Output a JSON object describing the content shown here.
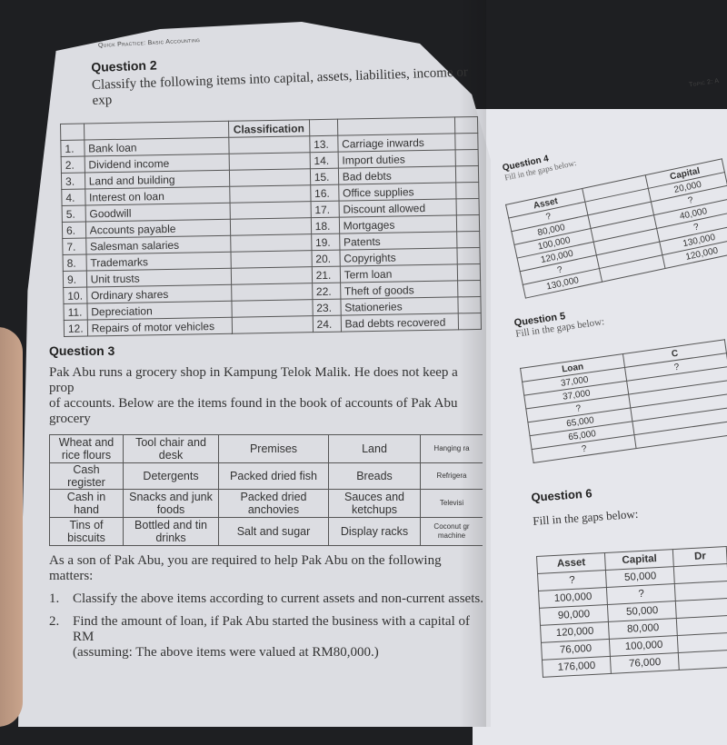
{
  "left_page": {
    "running_head": "Quick Practice: Basic Accounting",
    "q2": {
      "title": "Question 2",
      "instruction": "Classify the following items into capital, assets, liabilities, income or exp",
      "header": "Classification",
      "items_left": [
        {
          "n": "1.",
          "label": "Bank loan"
        },
        {
          "n": "2.",
          "label": "Dividend income"
        },
        {
          "n": "3.",
          "label": "Land and building"
        },
        {
          "n": "4.",
          "label": "Interest on loan"
        },
        {
          "n": "5.",
          "label": "Goodwill"
        },
        {
          "n": "6.",
          "label": "Accounts payable"
        },
        {
          "n": "7.",
          "label": "Salesman salaries"
        },
        {
          "n": "8.",
          "label": "Trademarks"
        },
        {
          "n": "9.",
          "label": "Unit trusts"
        },
        {
          "n": "10.",
          "label": "Ordinary shares"
        },
        {
          "n": "11.",
          "label": "Depreciation"
        },
        {
          "n": "12.",
          "label": "Repairs of motor vehicles"
        }
      ],
      "items_right": [
        {
          "n": "13.",
          "label": "Carriage inwards"
        },
        {
          "n": "14.",
          "label": "Import duties"
        },
        {
          "n": "15.",
          "label": "Bad debts"
        },
        {
          "n": "16.",
          "label": "Office supplies"
        },
        {
          "n": "17.",
          "label": "Discount allowed"
        },
        {
          "n": "18.",
          "label": "Mortgages"
        },
        {
          "n": "19.",
          "label": "Patents"
        },
        {
          "n": "20.",
          "label": "Copyrights"
        },
        {
          "n": "21.",
          "label": "Term loan"
        },
        {
          "n": "22.",
          "label": "Theft of goods"
        },
        {
          "n": "23.",
          "label": "Stationeries"
        },
        {
          "n": "24.",
          "label": "Bad debts recovered"
        }
      ]
    },
    "q3": {
      "title": "Question 3",
      "para1": "Pak Abu runs a grocery shop in Kampung Telok Malik. He does not keep a prop",
      "para2": "of accounts. Below are the items found in the book of accounts of Pak Abu grocery",
      "rows": [
        [
          "Wheat and rice flours",
          "Tool chair and desk",
          "Premises",
          "Land",
          "Hanging ra"
        ],
        [
          "Cash register",
          "Detergents",
          "Packed dried fish",
          "Breads",
          "Refrigera"
        ],
        [
          "Cash in hand",
          "Snacks and junk foods",
          "Packed dried anchovies",
          "Sauces and ketchups",
          "Televisi"
        ],
        [
          "Tins of biscuits",
          "Bottled and tin drinks",
          "Salt and sugar",
          "Display racks",
          "Coconut gr machine"
        ]
      ],
      "intro": "As a son of Pak Abu, you are required to help Pak Abu on the following matters:",
      "tasks": [
        {
          "n": "1.",
          "text": "Classify the above items according to current assets and non-current assets."
        },
        {
          "n": "2.",
          "text": "Find the amount of loan, if Pak Abu started the business with a capital of RM"
        }
      ],
      "note": "(assuming: The above items were valued at RM80,000.)"
    }
  },
  "right_page": {
    "running_head": "Topic 2: A",
    "q4": {
      "title": "Question 4",
      "instruction": "Fill in the gaps below:",
      "headers": [
        "Asset",
        "",
        "Capital"
      ],
      "rows": [
        [
          "?",
          "",
          "20,000"
        ],
        [
          "80,000",
          "",
          "?"
        ],
        [
          "100,000",
          "",
          "40,000"
        ],
        [
          "120,000",
          "",
          "?"
        ],
        [
          "?",
          "",
          "130,000"
        ],
        [
          "130,000",
          "",
          "120,000"
        ]
      ]
    },
    "q5": {
      "title": "Question 5",
      "instruction": "Fill in the gaps below:",
      "headers": [
        "Loan",
        "C"
      ],
      "rows": [
        [
          "37,000",
          "?"
        ],
        [
          "37,000",
          ""
        ],
        [
          "?",
          ""
        ],
        [
          "65,000",
          ""
        ],
        [
          "65,000",
          ""
        ],
        [
          "?",
          ""
        ]
      ]
    },
    "q6": {
      "title": "Question 6",
      "instruction": "Fill in the gaps below:",
      "headers": [
        "Asset",
        "Capital",
        "Dr"
      ],
      "rows": [
        [
          "?",
          "50,000",
          ""
        ],
        [
          "100,000",
          "?",
          ""
        ],
        [
          "90,000",
          "50,000",
          ""
        ],
        [
          "120,000",
          "80,000",
          ""
        ],
        [
          "76,000",
          "100,000",
          ""
        ],
        [
          "176,000",
          "76,000",
          ""
        ]
      ]
    }
  }
}
